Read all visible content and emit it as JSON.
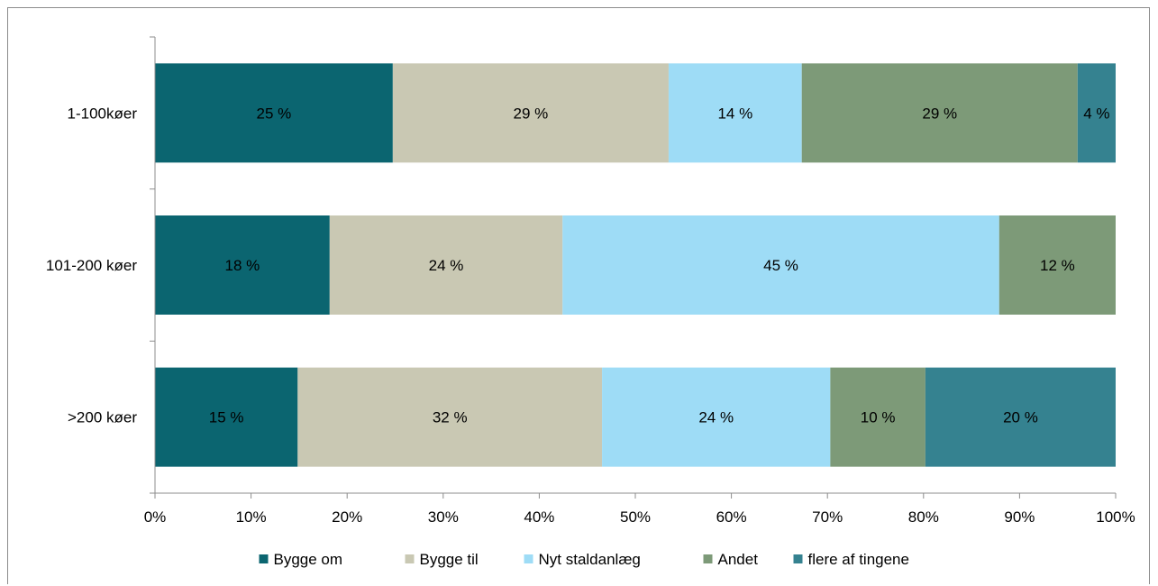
{
  "chart_data": {
    "type": "bar",
    "orientation": "horizontal",
    "stacked": "percent",
    "categories": [
      "1-100køer",
      "101-200 køer",
      ">200 køer"
    ],
    "series": [
      {
        "name": "Bygge om",
        "color": "#0b6570",
        "values": [
          25,
          18,
          15
        ],
        "labels": [
          "25 %",
          "18 %",
          "15 %"
        ]
      },
      {
        "name": "Bygge til",
        "color": "#c9c8b3",
        "values": [
          29,
          24,
          32
        ],
        "labels": [
          "29 %",
          "24 %",
          "32 %"
        ]
      },
      {
        "name": "Nyt staldanlæg",
        "color": "#9edcf6",
        "values": [
          14,
          45,
          24
        ],
        "labels": [
          "14 %",
          "45 %",
          "24 %"
        ]
      },
      {
        "name": "Andet",
        "color": "#7d9a78",
        "values": [
          29,
          12,
          10
        ],
        "labels": [
          "29 %",
          "12 %",
          "10 %"
        ]
      },
      {
        "name": "flere af tingene",
        "color": "#358290",
        "values": [
          4,
          0,
          20
        ],
        "labels": [
          "4 %",
          "",
          "20 %"
        ]
      }
    ],
    "xlim": [
      0,
      100
    ],
    "xticks": [
      "0%",
      "10%",
      "20%",
      "30%",
      "40%",
      "50%",
      "60%",
      "70%",
      "80%",
      "90%",
      "100%"
    ],
    "legend_position": "bottom",
    "grid": false
  }
}
